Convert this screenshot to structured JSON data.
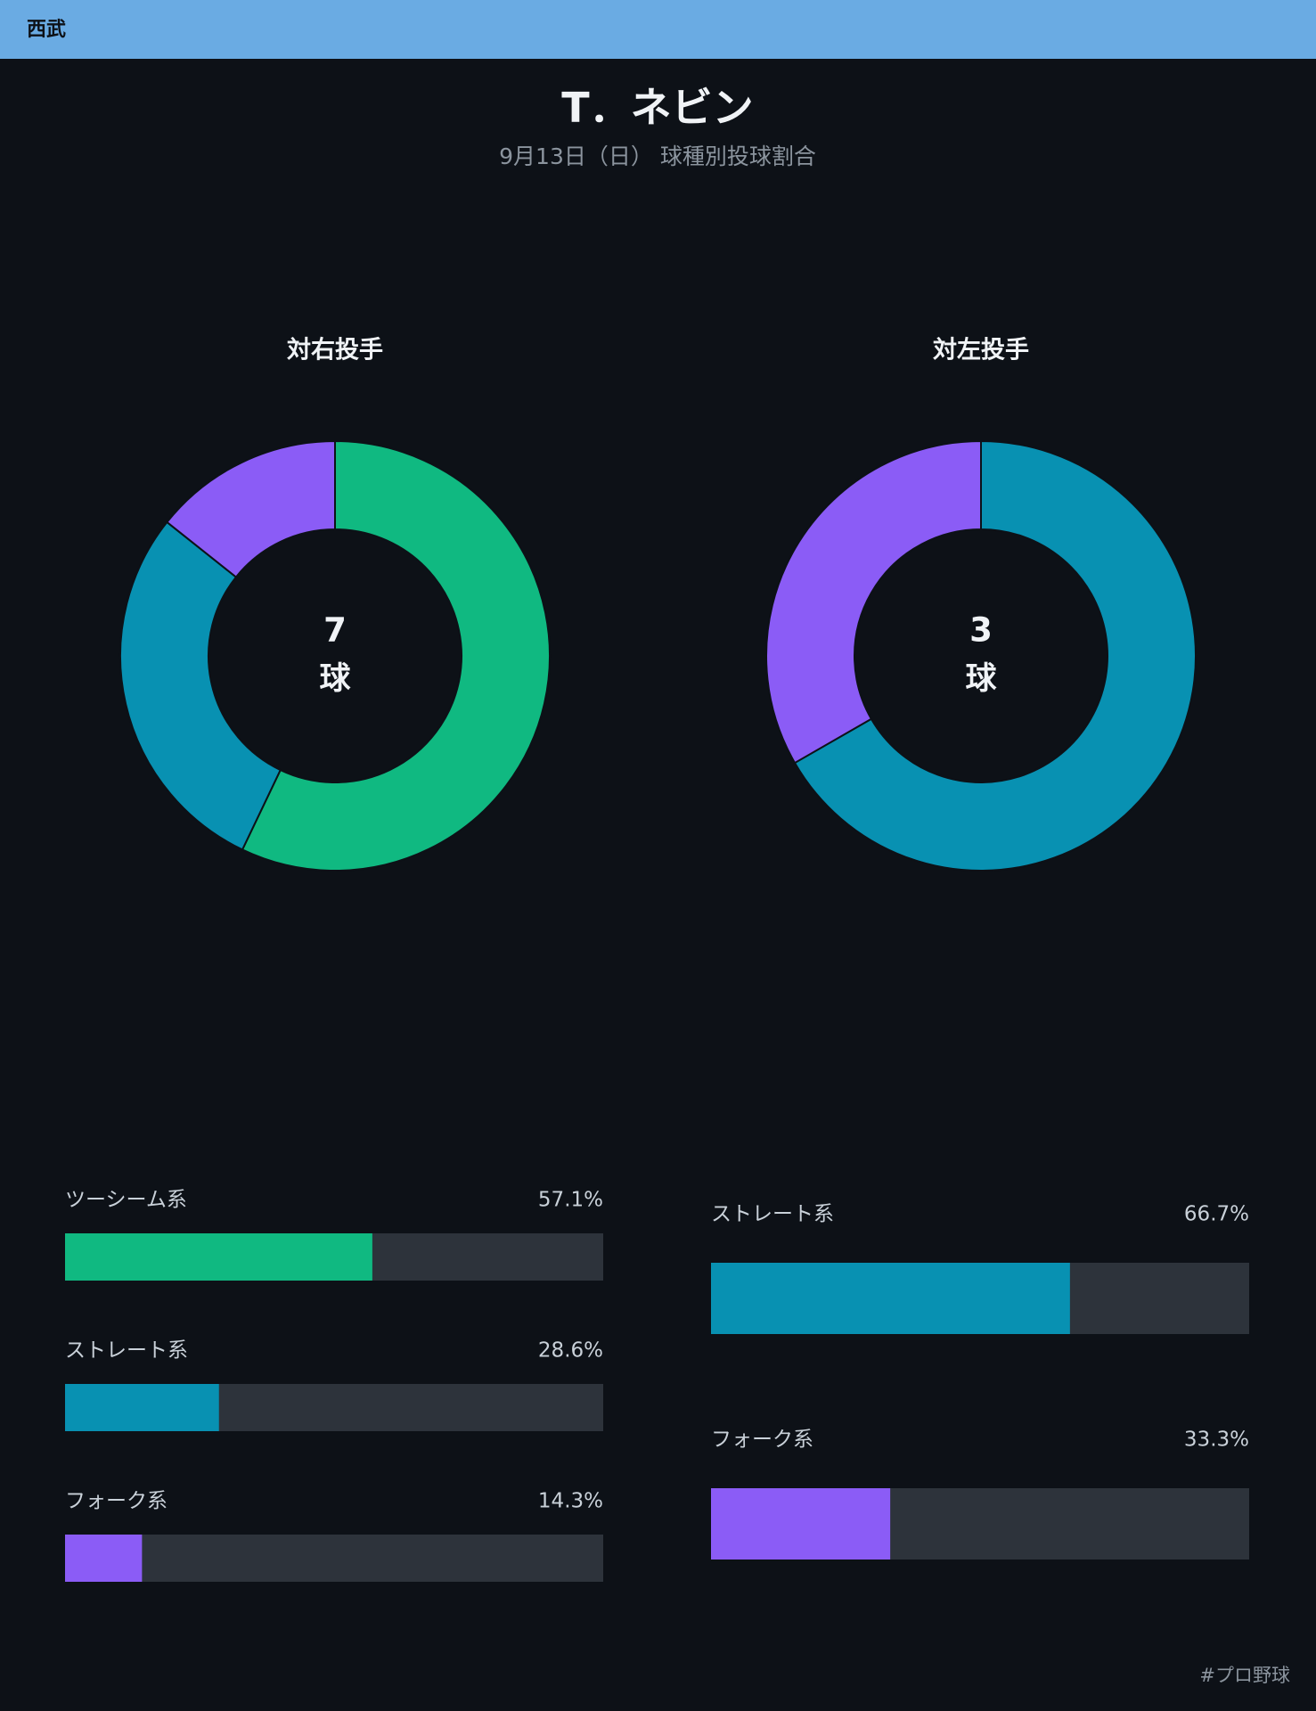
{
  "header": {
    "team": "西武"
  },
  "title": "T．ネビン",
  "subtitle": "9月13日（日） 球種別投球割合",
  "footer": "#プロ野球",
  "chart_data": [
    {
      "type": "pie",
      "title": "対右投手",
      "total": 7,
      "unit": "球",
      "categories": [
        "ツーシーム系",
        "ストレート系",
        "フォーク系"
      ],
      "values": [
        57.1,
        28.6,
        14.3
      ],
      "value_labels": [
        "57.1%",
        "28.6%",
        "14.3%"
      ],
      "colors": [
        "#10b981",
        "#0891b2",
        "#8b5cf6"
      ],
      "xlim": [
        0,
        100
      ]
    },
    {
      "type": "pie",
      "title": "対左投手",
      "total": 3,
      "unit": "球",
      "categories": [
        "ストレート系",
        "フォーク系"
      ],
      "values": [
        66.7,
        33.3
      ],
      "value_labels": [
        "66.7%",
        "33.3%"
      ],
      "colors": [
        "#0891b2",
        "#8b5cf6"
      ],
      "xlim": [
        0,
        100
      ]
    }
  ]
}
